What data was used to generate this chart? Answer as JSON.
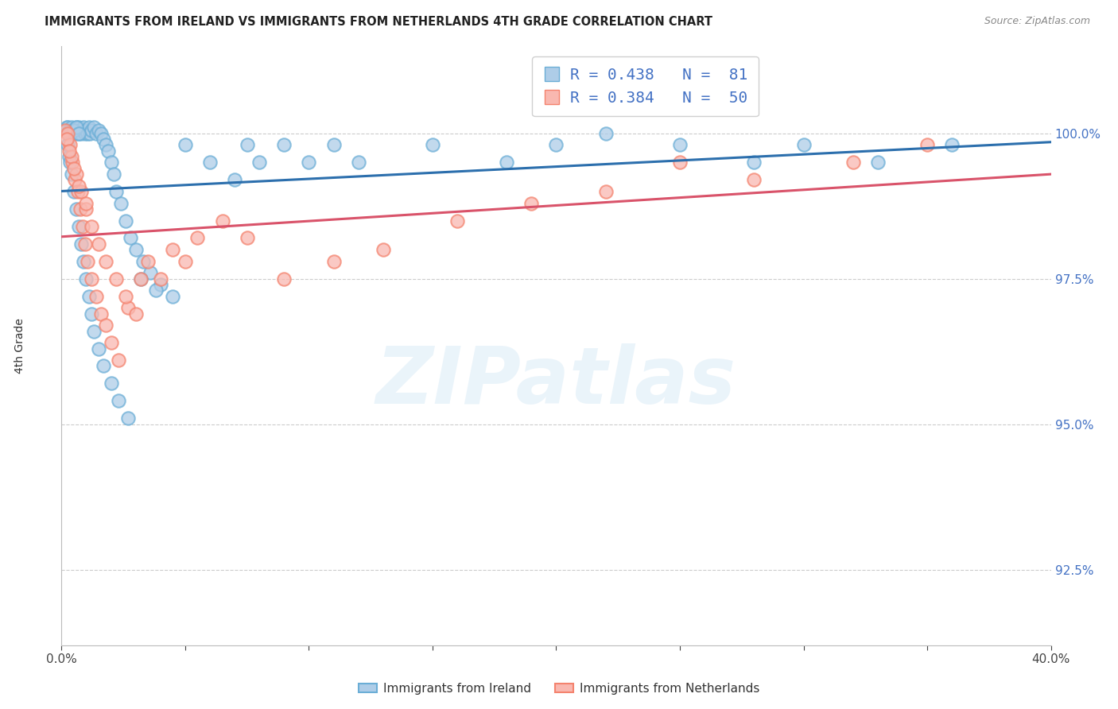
{
  "title": "IMMIGRANTS FROM IRELAND VS IMMIGRANTS FROM NETHERLANDS 4TH GRADE CORRELATION CHART",
  "source": "Source: ZipAtlas.com",
  "ylabel": "4th Grade",
  "ytick_values": [
    100.0,
    97.5,
    95.0,
    92.5
  ],
  "xlim": [
    0.0,
    40.0
  ],
  "ylim": [
    91.2,
    101.5
  ],
  "legend_text1": "R = 0.438   N =  81",
  "legend_text2": "R = 0.384   N =  50",
  "ireland_color_face": "#aecde8",
  "ireland_color_edge": "#6baed6",
  "netherlands_color_face": "#f9b8b0",
  "netherlands_color_edge": "#f4836e",
  "trendline_blue": "#2c6fad",
  "trendline_pink": "#d9536a",
  "ireland_label": "Immigrants from Ireland",
  "netherlands_label": "Immigrants from Netherlands",
  "watermark": "ZIPatlas",
  "grid_color": "#cccccc",
  "ytick_color": "#4472c4",
  "legend_text_color": "#4472c4",
  "title_color": "#222222",
  "source_color": "#888888",
  "blue_scatter_x": [
    0.15,
    0.2,
    0.25,
    0.3,
    0.35,
    0.4,
    0.45,
    0.5,
    0.55,
    0.6,
    0.65,
    0.7,
    0.75,
    0.8,
    0.85,
    0.9,
    0.95,
    1.0,
    1.05,
    1.1,
    1.15,
    1.2,
    1.3,
    1.4,
    1.5,
    1.6,
    1.7,
    1.8,
    1.9,
    2.0,
    2.1,
    2.2,
    2.4,
    2.6,
    2.8,
    3.0,
    3.3,
    3.6,
    4.0,
    4.5,
    0.3,
    0.4,
    0.5,
    0.6,
    0.7,
    0.8,
    0.9,
    1.0,
    1.1,
    1.2,
    1.3,
    1.5,
    1.7,
    2.0,
    2.3,
    2.7,
    3.2,
    3.8,
    0.25,
    0.35,
    5.0,
    6.0,
    7.0,
    7.5,
    8.0,
    9.0,
    10.0,
    11.0,
    12.0,
    15.0,
    18.0,
    20.0,
    22.0,
    25.0,
    28.0,
    30.0,
    33.0,
    36.0,
    0.5,
    0.6,
    0.7
  ],
  "blue_scatter_y": [
    100.05,
    100.1,
    100.1,
    100.05,
    100.0,
    100.1,
    100.05,
    100.0,
    100.05,
    100.1,
    100.0,
    100.1,
    100.05,
    100.0,
    100.05,
    100.1,
    100.0,
    100.05,
    100.0,
    100.1,
    100.0,
    100.05,
    100.1,
    100.0,
    100.05,
    100.0,
    99.9,
    99.8,
    99.7,
    99.5,
    99.3,
    99.0,
    98.8,
    98.5,
    98.2,
    98.0,
    97.8,
    97.6,
    97.4,
    97.2,
    99.6,
    99.3,
    99.0,
    98.7,
    98.4,
    98.1,
    97.8,
    97.5,
    97.2,
    96.9,
    96.6,
    96.3,
    96.0,
    95.7,
    95.4,
    95.1,
    97.5,
    97.3,
    99.8,
    99.5,
    99.8,
    99.5,
    99.2,
    99.8,
    99.5,
    99.8,
    99.5,
    99.8,
    99.5,
    99.8,
    99.5,
    99.8,
    100.0,
    99.8,
    99.5,
    99.8,
    99.5,
    99.8,
    100.05,
    100.1,
    100.0
  ],
  "pink_scatter_x": [
    0.15,
    0.25,
    0.35,
    0.45,
    0.55,
    0.65,
    0.75,
    0.85,
    0.95,
    1.05,
    1.2,
    1.4,
    1.6,
    1.8,
    2.0,
    2.3,
    2.7,
    3.2,
    0.2,
    0.4,
    0.6,
    0.8,
    1.0,
    1.2,
    1.5,
    1.8,
    2.2,
    2.6,
    3.0,
    3.5,
    4.0,
    4.5,
    5.0,
    5.5,
    6.5,
    7.5,
    9.0,
    11.0,
    13.0,
    16.0,
    19.0,
    22.0,
    25.0,
    28.0,
    32.0,
    35.0,
    0.3,
    0.5,
    0.7,
    1.0
  ],
  "pink_scatter_y": [
    100.05,
    100.0,
    99.8,
    99.5,
    99.2,
    99.0,
    98.7,
    98.4,
    98.1,
    97.8,
    97.5,
    97.2,
    96.9,
    96.7,
    96.4,
    96.1,
    97.0,
    97.5,
    99.9,
    99.6,
    99.3,
    99.0,
    98.7,
    98.4,
    98.1,
    97.8,
    97.5,
    97.2,
    96.9,
    97.8,
    97.5,
    98.0,
    97.8,
    98.2,
    98.5,
    98.2,
    97.5,
    97.8,
    98.0,
    98.5,
    98.8,
    99.0,
    99.5,
    99.2,
    99.5,
    99.8,
    99.7,
    99.4,
    99.1,
    98.8
  ]
}
